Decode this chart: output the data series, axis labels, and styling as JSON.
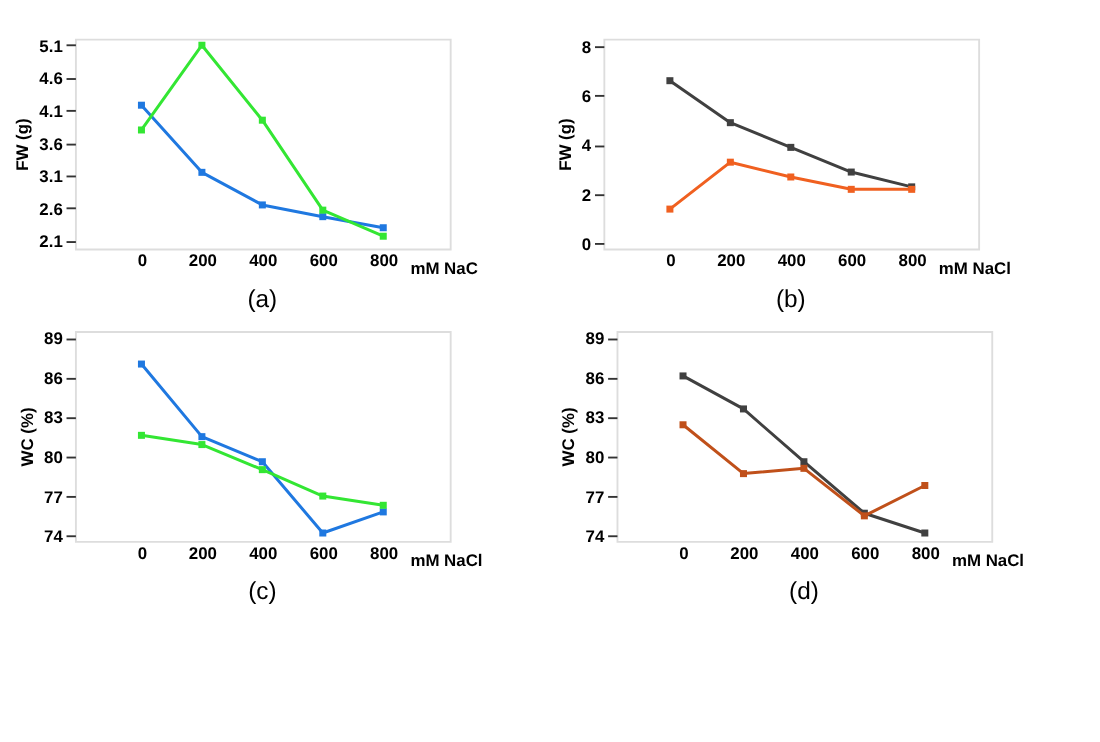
{
  "chart_data": [
    {
      "type": "line",
      "ylabel": "FW (g)",
      "xlabel": "mM NaC",
      "x": [
        0,
        200,
        400,
        600,
        800
      ],
      "xlim": [
        -220,
        1020
      ],
      "xticks": [
        0,
        200,
        400,
        600,
        800
      ],
      "ylim": [
        1.98,
        5.2
      ],
      "yticks": [
        2.1,
        2.6,
        3.1,
        3.6,
        4.1,
        4.6,
        5.1
      ],
      "marker": "square",
      "grid": false,
      "annotations": [
        "(a)"
      ],
      "series": [
        {
          "color": "#1f78e0",
          "values": [
            4.18,
            3.15,
            2.65,
            2.47,
            2.3
          ]
        },
        {
          "color": "#33e633",
          "values": [
            3.8,
            5.1,
            3.95,
            2.57,
            2.17
          ]
        }
      ]
    },
    {
      "type": "line",
      "ylabel": "FW (g)",
      "xlabel": "mM NaCl",
      "x": [
        0,
        200,
        400,
        600,
        800
      ],
      "xlim": [
        -220,
        1020
      ],
      "xticks": [
        0,
        200,
        400,
        600,
        800
      ],
      "ylim": [
        -0.2,
        8.3
      ],
      "yticks": [
        0,
        2,
        4,
        6,
        8
      ],
      "marker": "square",
      "grid": false,
      "annotations": [
        "(b)"
      ],
      "series": [
        {
          "color": "#404040",
          "values": [
            6.6,
            4.9,
            3.9,
            2.9,
            2.3
          ]
        },
        {
          "color": "#f06020",
          "values": [
            1.4,
            3.3,
            2.7,
            2.2,
            2.2
          ]
        }
      ]
    },
    {
      "type": "line",
      "ylabel": "WC (%)",
      "xlabel": "mM NaCl",
      "x": [
        0,
        200,
        400,
        600,
        800
      ],
      "xlim": [
        -220,
        1020
      ],
      "xticks": [
        0,
        200,
        400,
        600,
        800
      ],
      "ylim": [
        73.6,
        89.5
      ],
      "yticks": [
        74,
        77,
        80,
        83,
        86,
        89
      ],
      "marker": "square",
      "grid": false,
      "annotations": [
        "(c)"
      ],
      "series": [
        {
          "color": "#1f78e0",
          "values": [
            87,
            81.5,
            79.6,
            74.2,
            75.8
          ]
        },
        {
          "color": "#33e633",
          "values": [
            81.6,
            80.9,
            79,
            77,
            76.3
          ]
        }
      ]
    },
    {
      "type": "line",
      "ylabel": "WC (%)",
      "xlabel": "mM NaCl",
      "x": [
        0,
        200,
        400,
        600,
        800
      ],
      "xlim": [
        -220,
        1020
      ],
      "xticks": [
        0,
        200,
        400,
        600,
        800
      ],
      "ylim": [
        73.6,
        89.5
      ],
      "yticks": [
        74,
        77,
        80,
        83,
        86,
        89
      ],
      "marker": "square",
      "grid": false,
      "annotations": [
        "(d)"
      ],
      "series": [
        {
          "color": "#404040",
          "values": [
            86.1,
            83.6,
            79.6,
            75.7,
            74.2
          ]
        },
        {
          "color": "#c0501a",
          "values": [
            82.4,
            78.7,
            79.1,
            75.5,
            77.8
          ]
        }
      ]
    }
  ]
}
